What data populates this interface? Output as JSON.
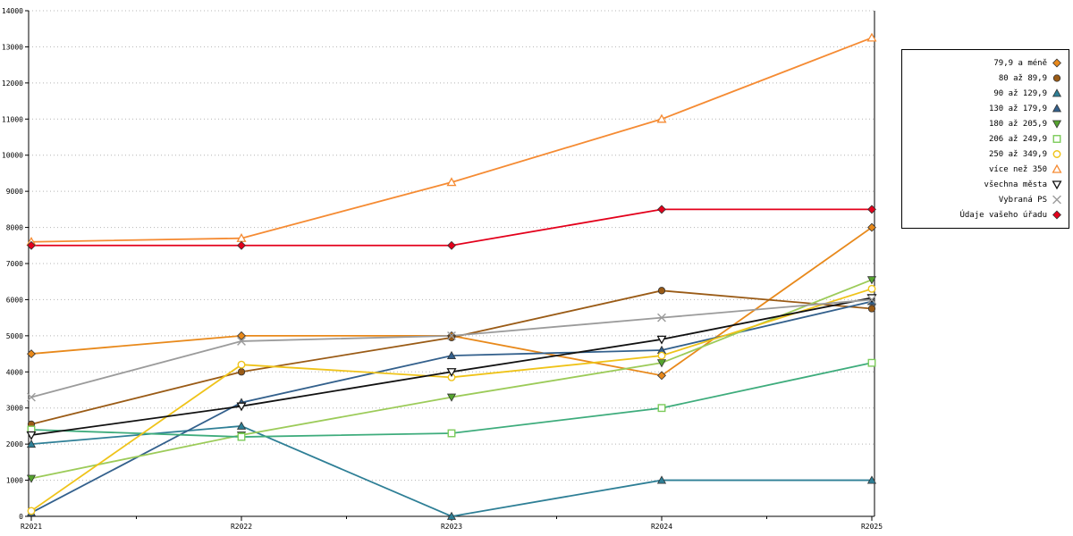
{
  "chart_data": {
    "type": "line",
    "title": "",
    "xlabel": "",
    "ylabel": "",
    "x_categories": [
      "R2021",
      "R2022",
      "R2023",
      "R2024",
      "R2025"
    ],
    "ylim": [
      0,
      14000
    ],
    "y_tick_step": 1000,
    "grid": "horizontal-dotted",
    "legend_position": "right",
    "series": [
      {
        "name": "79,9 a méně",
        "marker": "diamond",
        "fill": "filled",
        "color": "#E8891B",
        "values": [
          4500,
          5000,
          5000,
          3900,
          8000
        ]
      },
      {
        "name": "80 až 89,9",
        "marker": "circle",
        "fill": "filled",
        "color": "#9A5B16",
        "values": [
          2550,
          4000,
          4950,
          6250,
          5750
        ]
      },
      {
        "name": "90 až 129,9",
        "marker": "triangle-up",
        "fill": "filled",
        "color": "#2E7F96",
        "values": [
          2000,
          2500,
          0,
          1000,
          1000
        ]
      },
      {
        "name": "130 až 179,9",
        "marker": "triangle-up",
        "fill": "filled",
        "color": "#33608C",
        "values": [
          100,
          3150,
          4450,
          4600,
          5950
        ]
      },
      {
        "name": "180 až 205,9",
        "marker": "triangle-down",
        "fill": "filled",
        "color": "#9CCB59",
        "marker_color": "#55A42F",
        "values": [
          1050,
          2250,
          3300,
          4250,
          6550
        ]
      },
      {
        "name": "206 až 249,9",
        "marker": "square",
        "fill": "open",
        "color": "#3EAC7C",
        "marker_color": "#7CCB5A",
        "values": [
          2400,
          2200,
          2300,
          3000,
          4250
        ]
      },
      {
        "name": "250 až 349,9",
        "marker": "circle",
        "fill": "open",
        "color": "#EFC319",
        "values": [
          150,
          4200,
          3850,
          4450,
          6300
        ]
      },
      {
        "name": "více než 350",
        "marker": "triangle-up",
        "fill": "open",
        "color": "#F58B33",
        "values": [
          7600,
          7700,
          9250,
          11000,
          13250
        ]
      },
      {
        "name": "všechna města",
        "marker": "triangle-down",
        "fill": "open",
        "color": "#111111",
        "values": [
          2250,
          3050,
          4000,
          4900,
          6050
        ]
      },
      {
        "name": "Vybraná PS",
        "marker": "x",
        "fill": "open",
        "color": "#9B9B9B",
        "values": [
          3300,
          4850,
          5000,
          5500,
          6000
        ]
      },
      {
        "name": "Údaje vašeho úřadu",
        "marker": "diamond",
        "fill": "filled",
        "color": "#E3001B",
        "values": [
          7500,
          7500,
          7500,
          8500,
          8500
        ]
      }
    ]
  }
}
